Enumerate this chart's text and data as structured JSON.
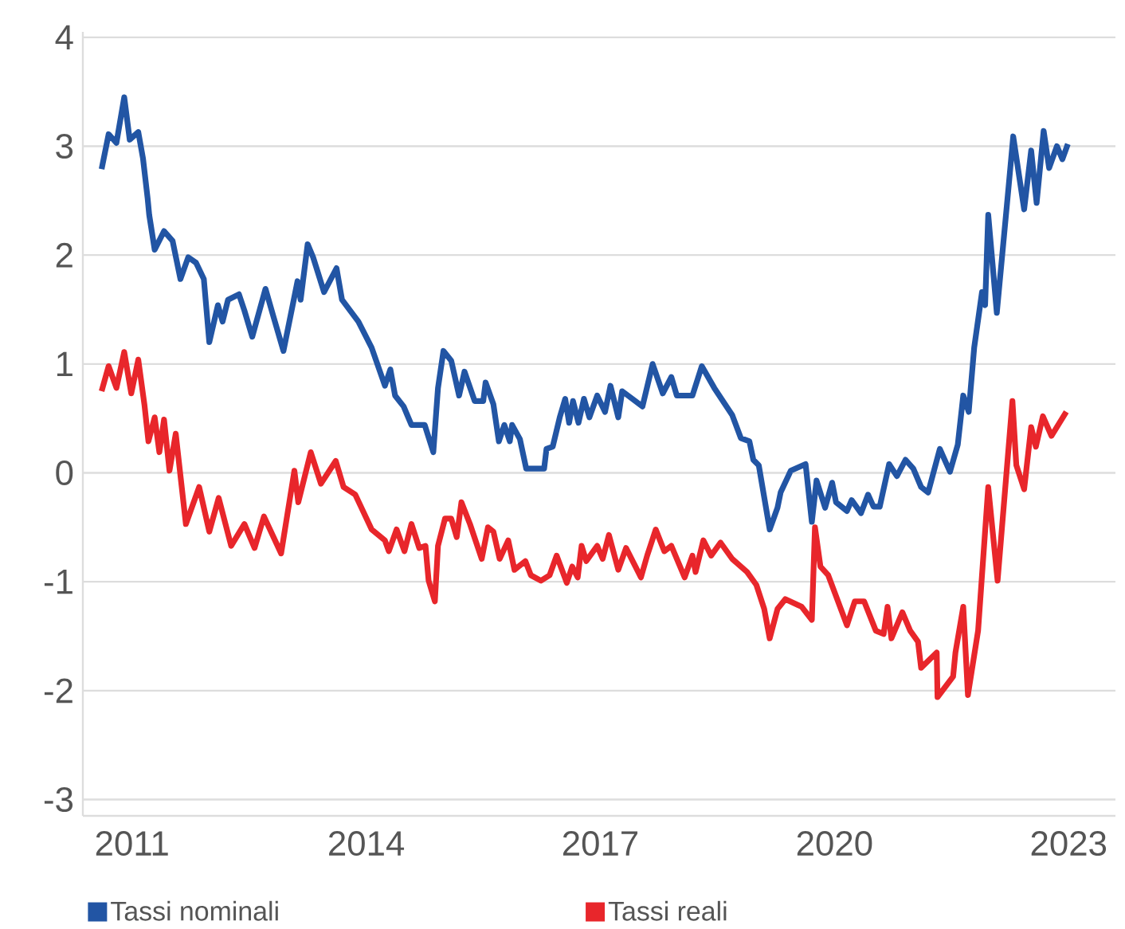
{
  "chart_data": {
    "type": "line",
    "xlim": [
      2010.37,
      2023.6
    ],
    "ylim": [
      -3.15,
      4.05
    ],
    "xticks": [
      2011,
      2014,
      2017,
      2020,
      2023
    ],
    "yticks": [
      -3,
      -2,
      -1,
      0,
      1,
      2,
      3,
      4
    ],
    "grid": "y",
    "legend": "bottom",
    "marker": "none",
    "line_style": "solid",
    "series": [
      {
        "name": "Tassi nominali",
        "color": "#2255a4",
        "x": [
          2010.61,
          2010.7,
          2010.8,
          2010.9,
          2010.97,
          2011.08,
          2011.14,
          2011.2,
          2011.22,
          2011.29,
          2011.41,
          2011.52,
          2011.62,
          2011.72,
          2011.82,
          2011.92,
          2011.99,
          2012.1,
          2012.16,
          2012.23,
          2012.37,
          2012.44,
          2012.54,
          2012.71,
          2012.81,
          2012.94,
          2013.12,
          2013.16,
          2013.25,
          2013.32,
          2013.46,
          2013.62,
          2013.69,
          2013.9,
          2014.07,
          2014.24,
          2014.31,
          2014.37,
          2014.48,
          2014.58,
          2014.75,
          2014.86,
          2014.92,
          2014.99,
          2015.09,
          2015.19,
          2015.26,
          2015.39,
          2015.5,
          2015.53,
          2015.63,
          2015.7,
          2015.77,
          2015.84,
          2015.87,
          2015.97,
          2016.05,
          2016.28,
          2016.31,
          2016.39,
          2016.48,
          2016.55,
          2016.6,
          2016.65,
          2016.72,
          2016.79,
          2016.86,
          2016.96,
          2017.06,
          2017.13,
          2017.23,
          2017.28,
          2017.54,
          2017.67,
          2017.8,
          2017.91,
          2017.98,
          2018.18,
          2018.3,
          2018.46,
          2018.69,
          2018.8,
          2018.91,
          2018.96,
          2019.03,
          2019.17,
          2019.27,
          2019.31,
          2019.44,
          2019.63,
          2019.71,
          2019.77,
          2019.88,
          2019.97,
          2020.02,
          2020.16,
          2020.22,
          2020.34,
          2020.43,
          2020.5,
          2020.58,
          2020.7,
          2020.8,
          2020.91,
          2021.01,
          2021.11,
          2021.2,
          2021.35,
          2021.48,
          2021.58,
          2021.65,
          2021.72,
          2021.79,
          2021.89,
          2021.93,
          2021.97,
          2022.08,
          2022.23,
          2022.29,
          2022.43,
          2022.52,
          2022.59,
          2022.68,
          2022.75,
          2022.85,
          2022.92,
          2022.99
        ],
        "values": [
          2.79,
          3.11,
          3.03,
          3.45,
          3.06,
          3.13,
          2.89,
          2.52,
          2.37,
          2.05,
          2.22,
          2.13,
          1.78,
          1.98,
          1.93,
          1.78,
          1.2,
          1.54,
          1.39,
          1.59,
          1.64,
          1.49,
          1.25,
          1.69,
          1.44,
          1.12,
          1.76,
          1.59,
          2.1,
          1.98,
          1.66,
          1.88,
          1.59,
          1.39,
          1.15,
          0.8,
          0.95,
          0.71,
          0.61,
          0.44,
          0.44,
          0.19,
          0.78,
          1.12,
          1.03,
          0.71,
          0.93,
          0.66,
          0.66,
          0.83,
          0.63,
          0.29,
          0.44,
          0.29,
          0.44,
          0.31,
          0.04,
          0.04,
          0.22,
          0.24,
          0.51,
          0.68,
          0.46,
          0.66,
          0.46,
          0.68,
          0.51,
          0.71,
          0.56,
          0.8,
          0.51,
          0.75,
          0.61,
          1.0,
          0.73,
          0.88,
          0.71,
          0.71,
          0.98,
          0.78,
          0.53,
          0.32,
          0.29,
          0.12,
          0.07,
          -0.52,
          -0.32,
          -0.18,
          0.02,
          0.08,
          -0.45,
          -0.07,
          -0.32,
          -0.09,
          -0.27,
          -0.35,
          -0.25,
          -0.37,
          -0.2,
          -0.31,
          -0.31,
          0.08,
          -0.03,
          0.12,
          0.04,
          -0.13,
          -0.18,
          0.22,
          0.01,
          0.26,
          0.71,
          0.56,
          1.15,
          1.66,
          1.54,
          2.37,
          1.47,
          2.62,
          3.09,
          2.42,
          2.96,
          2.48,
          3.14,
          2.8,
          3.0,
          2.88,
          3.02
        ]
      },
      {
        "name": "Tassi reali",
        "color": "#e8262b",
        "x": [
          2010.61,
          2010.7,
          2010.8,
          2010.9,
          2010.99,
          2011.08,
          2011.16,
          2011.21,
          2011.29,
          2011.35,
          2011.41,
          2011.48,
          2011.56,
          2011.69,
          2011.86,
          2011.99,
          2012.11,
          2012.27,
          2012.44,
          2012.57,
          2012.69,
          2012.91,
          2013.08,
          2013.13,
          2013.29,
          2013.42,
          2013.61,
          2013.71,
          2013.86,
          2014.07,
          2014.24,
          2014.29,
          2014.39,
          2014.49,
          2014.58,
          2014.68,
          2014.76,
          2014.8,
          2014.88,
          2014.92,
          2015.01,
          2015.09,
          2015.16,
          2015.22,
          2015.33,
          2015.48,
          2015.56,
          2015.63,
          2015.71,
          2015.82,
          2015.9,
          2016.04,
          2016.11,
          2016.24,
          2016.35,
          2016.44,
          2016.57,
          2016.64,
          2016.71,
          2016.76,
          2016.82,
          2016.96,
          2017.03,
          2017.11,
          2017.23,
          2017.33,
          2017.52,
          2017.6,
          2017.71,
          2017.82,
          2017.91,
          2018.08,
          2018.18,
          2018.22,
          2018.32,
          2018.42,
          2018.54,
          2018.69,
          2018.88,
          2019.0,
          2019.1,
          2019.17,
          2019.27,
          2019.37,
          2019.58,
          2019.71,
          2019.75,
          2019.82,
          2019.92,
          2020.16,
          2020.26,
          2020.38,
          2020.53,
          2020.63,
          2020.68,
          2020.73,
          2020.87,
          2020.97,
          2021.07,
          2021.11,
          2021.31,
          2021.32,
          2021.52,
          2021.55,
          2021.65,
          2021.71,
          2021.84,
          2021.97,
          2022.09,
          2022.28,
          2022.33,
          2022.43,
          2022.52,
          2022.58,
          2022.67,
          2022.78,
          2022.97
        ],
        "values": [
          0.75,
          0.98,
          0.78,
          1.11,
          0.73,
          1.04,
          0.62,
          0.29,
          0.51,
          0.19,
          0.49,
          0.02,
          0.36,
          -0.47,
          -0.13,
          -0.54,
          -0.23,
          -0.67,
          -0.47,
          -0.69,
          -0.4,
          -0.74,
          0.02,
          -0.27,
          0.19,
          -0.1,
          0.11,
          -0.13,
          -0.2,
          -0.52,
          -0.62,
          -0.72,
          -0.52,
          -0.72,
          -0.47,
          -0.69,
          -0.67,
          -0.99,
          -1.18,
          -0.67,
          -0.42,
          -0.42,
          -0.59,
          -0.27,
          -0.47,
          -0.79,
          -0.5,
          -0.54,
          -0.79,
          -0.62,
          -0.89,
          -0.81,
          -0.94,
          -0.99,
          -0.94,
          -0.76,
          -1.01,
          -0.86,
          -0.96,
          -0.67,
          -0.81,
          -0.67,
          -0.79,
          -0.57,
          -0.89,
          -0.69,
          -0.96,
          -0.76,
          -0.52,
          -0.72,
          -0.67,
          -0.96,
          -0.76,
          -0.91,
          -0.62,
          -0.76,
          -0.64,
          -0.79,
          -0.91,
          -1.03,
          -1.25,
          -1.52,
          -1.25,
          -1.16,
          -1.23,
          -1.35,
          -0.5,
          -0.86,
          -0.94,
          -1.4,
          -1.18,
          -1.18,
          -1.45,
          -1.48,
          -1.23,
          -1.52,
          -1.28,
          -1.45,
          -1.55,
          -1.79,
          -1.65,
          -2.06,
          -1.87,
          -1.65,
          -1.23,
          -2.04,
          -1.45,
          -0.13,
          -0.99,
          0.66,
          0.07,
          -0.15,
          0.42,
          0.24,
          0.52,
          0.34,
          0.56
        ]
      }
    ]
  }
}
